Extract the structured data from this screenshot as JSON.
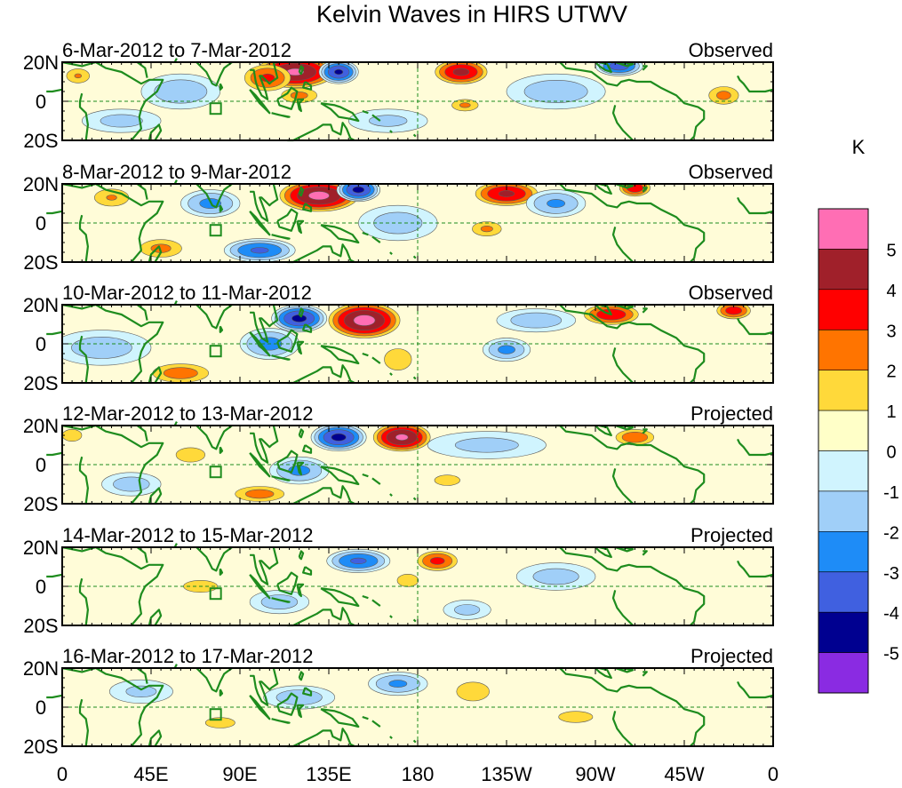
{
  "chart_data": {
    "type": "heatmap",
    "title": "Kelvin Waves in HIRS UTWV",
    "panels": [
      {
        "date_range": "6-Mar-2012 to 7-Mar-2012",
        "status": "Observed",
        "features": [
          {
            "lon": 118,
            "lat": 15,
            "value": 5.2,
            "rx": 22,
            "ry": 9
          },
          {
            "lon": 104,
            "lat": 12,
            "value": 3.2,
            "rx": 14,
            "ry": 8
          },
          {
            "lon": 140,
            "lat": 15,
            "value": -4.2,
            "rx": 10,
            "ry": 6
          },
          {
            "lon": 120,
            "lat": 3,
            "value": 2.3,
            "rx": 12,
            "ry": 5
          },
          {
            "lon": 202,
            "lat": 15,
            "value": 4.3,
            "rx": 15,
            "ry": 7
          },
          {
            "lon": 204,
            "lat": -2,
            "value": 2.2,
            "rx": 9,
            "ry": 4
          },
          {
            "lon": 282,
            "lat": 18,
            "value": -3.6,
            "rx": 12,
            "ry": 5
          },
          {
            "lon": 60,
            "lat": 5,
            "value": -1.8,
            "rx": 20,
            "ry": 9
          },
          {
            "lon": 8,
            "lat": 13,
            "value": 2.1,
            "rx": 8,
            "ry": 5
          },
          {
            "lon": 335,
            "lat": 3,
            "value": 2.3,
            "rx": 10,
            "ry": 6
          },
          {
            "lon": 250,
            "lat": 5,
            "value": -1.7,
            "rx": 25,
            "ry": 9
          },
          {
            "lon": 30,
            "lat": -10,
            "value": -1.4,
            "rx": 20,
            "ry": 6
          },
          {
            "lon": 165,
            "lat": -10,
            "value": -1.3,
            "rx": 20,
            "ry": 6
          }
        ]
      },
      {
        "date_range": "8-Mar-2012 to 9-Mar-2012",
        "status": "Observed",
        "features": [
          {
            "lon": 130,
            "lat": 14,
            "value": 5.3,
            "rx": 22,
            "ry": 9
          },
          {
            "lon": 150,
            "lat": 17,
            "value": -4.3,
            "rx": 11,
            "ry": 6
          },
          {
            "lon": 225,
            "lat": 15,
            "value": 4.2,
            "rx": 18,
            "ry": 7
          },
          {
            "lon": 290,
            "lat": 18,
            "value": 3.8,
            "rx": 9,
            "ry": 5
          },
          {
            "lon": 100,
            "lat": -14,
            "value": -3.2,
            "rx": 18,
            "ry": 6
          },
          {
            "lon": 50,
            "lat": -13,
            "value": 2.3,
            "rx": 14,
            "ry": 6
          },
          {
            "lon": 215,
            "lat": -3,
            "value": 2.2,
            "rx": 10,
            "ry": 5
          },
          {
            "lon": 75,
            "lat": 10,
            "value": -2.3,
            "rx": 15,
            "ry": 7
          },
          {
            "lon": 25,
            "lat": 13,
            "value": 2.1,
            "rx": 12,
            "ry": 6
          },
          {
            "lon": 250,
            "lat": 10,
            "value": -2.2,
            "rx": 15,
            "ry": 7
          },
          {
            "lon": 170,
            "lat": 0,
            "value": -1.6,
            "rx": 20,
            "ry": 9
          }
        ]
      },
      {
        "date_range": "10-Mar-2012 to 11-Mar-2012",
        "status": "Observed",
        "features": [
          {
            "lon": 153,
            "lat": 12,
            "value": 5.4,
            "rx": 20,
            "ry": 10
          },
          {
            "lon": 120,
            "lat": 13,
            "value": -4.3,
            "rx": 14,
            "ry": 7
          },
          {
            "lon": 278,
            "lat": 15,
            "value": 3.8,
            "rx": 16,
            "ry": 6
          },
          {
            "lon": 340,
            "lat": 17,
            "value": 3.6,
            "rx": 10,
            "ry": 5
          },
          {
            "lon": 60,
            "lat": -15,
            "value": 2.6,
            "rx": 18,
            "ry": 6
          },
          {
            "lon": 105,
            "lat": 0,
            "value": -2.4,
            "rx": 15,
            "ry": 8
          },
          {
            "lon": 225,
            "lat": -3,
            "value": -2.3,
            "rx": 12,
            "ry": 6
          },
          {
            "lon": 170,
            "lat": -8,
            "value": 1.9,
            "rx": 10,
            "ry": 8
          },
          {
            "lon": 20,
            "lat": -2,
            "value": -1.6,
            "rx": 25,
            "ry": 9
          },
          {
            "lon": 240,
            "lat": 12,
            "value": -1.7,
            "rx": 20,
            "ry": 6
          }
        ]
      },
      {
        "date_range": "12-Mar-2012 to 13-Mar-2012",
        "status": "Projected",
        "features": [
          {
            "lon": 172,
            "lat": 14,
            "value": 5.2,
            "rx": 16,
            "ry": 8
          },
          {
            "lon": 140,
            "lat": 14,
            "value": -4.3,
            "rx": 14,
            "ry": 7
          },
          {
            "lon": 290,
            "lat": 14,
            "value": 2.8,
            "rx": 12,
            "ry": 5
          },
          {
            "lon": 100,
            "lat": -15,
            "value": 2.5,
            "rx": 16,
            "ry": 5
          },
          {
            "lon": 120,
            "lat": -3,
            "value": -2.3,
            "rx": 15,
            "ry": 7
          },
          {
            "lon": 65,
            "lat": 5,
            "value": 1.6,
            "rx": 12,
            "ry": 6
          },
          {
            "lon": 35,
            "lat": -10,
            "value": -1.6,
            "rx": 15,
            "ry": 6
          },
          {
            "lon": 215,
            "lat": 10,
            "value": -1.4,
            "rx": 30,
            "ry": 7
          },
          {
            "lon": 195,
            "lat": -8,
            "value": 1.4,
            "rx": 12,
            "ry": 5
          },
          {
            "lon": 5,
            "lat": 15,
            "value": 1.6,
            "rx": 8,
            "ry": 5
          }
        ]
      },
      {
        "date_range": "14-Mar-2012 to 15-Mar-2012",
        "status": "Projected",
        "features": [
          {
            "lon": 190,
            "lat": 13,
            "value": 3.3,
            "rx": 12,
            "ry": 6
          },
          {
            "lon": 150,
            "lat": 13,
            "value": -3.2,
            "rx": 16,
            "ry": 6
          },
          {
            "lon": 70,
            "lat": 0,
            "value": 1.6,
            "rx": 14,
            "ry": 5
          },
          {
            "lon": 110,
            "lat": -8,
            "value": -1.6,
            "rx": 15,
            "ry": 6
          },
          {
            "lon": 250,
            "lat": 5,
            "value": -1.5,
            "rx": 20,
            "ry": 7
          },
          {
            "lon": 175,
            "lat": 3,
            "value": 1.4,
            "rx": 10,
            "ry": 6
          },
          {
            "lon": 205,
            "lat": -12,
            "value": -1.4,
            "rx": 12,
            "ry": 5
          }
        ]
      },
      {
        "date_range": "16-Mar-2012 to 17-Mar-2012",
        "status": "Projected",
        "features": [
          {
            "lon": 208,
            "lat": 8,
            "value": 1.9,
            "rx": 12,
            "ry": 7
          },
          {
            "lon": 170,
            "lat": 12,
            "value": -2.2,
            "rx": 15,
            "ry": 6
          },
          {
            "lon": 120,
            "lat": 5,
            "value": -1.7,
            "rx": 18,
            "ry": 6
          },
          {
            "lon": 80,
            "lat": -8,
            "value": 1.4,
            "rx": 14,
            "ry": 5
          },
          {
            "lon": 40,
            "lat": 8,
            "value": -1.3,
            "rx": 16,
            "ry": 6
          },
          {
            "lon": 260,
            "lat": -5,
            "value": 1.3,
            "rx": 18,
            "ry": 6
          }
        ]
      }
    ],
    "x_ticks": [
      "0",
      "45E",
      "90E",
      "135E",
      "180",
      "135W",
      "90W",
      "45W",
      "0"
    ],
    "x_range": [
      0,
      360
    ],
    "y_ticks": [
      "20N",
      "0",
      "20S"
    ],
    "y_range": [
      -20,
      20
    ],
    "colorbar": {
      "unit": "K",
      "levels": [
        "5",
        "4",
        "3",
        "2",
        "1",
        "0",
        "-1",
        "-2",
        "-3",
        "-4",
        "-5"
      ],
      "colors": [
        "#ff6eb4",
        "#a0202a",
        "#ff0000",
        "#ff7400",
        "#ffd93a",
        "#ffffc8",
        "#d0f4fe",
        "#a0cff8",
        "#1e8cf7",
        "#4060e0",
        "#000090",
        "#8a2be2"
      ]
    },
    "background_color": "#fffcd8",
    "land_color": "#1e8c1e",
    "grid": "dashed lines at equator and 180"
  }
}
